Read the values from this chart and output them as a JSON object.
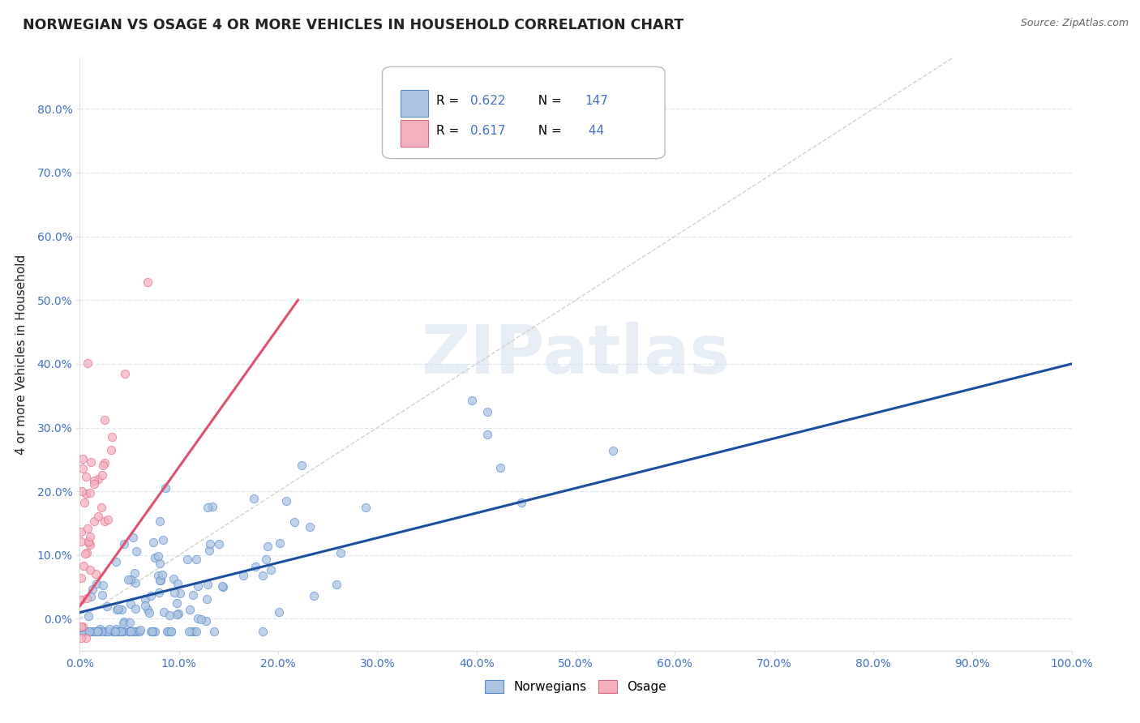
{
  "title": "NORWEGIAN VS OSAGE 4 OR MORE VEHICLES IN HOUSEHOLD CORRELATION CHART",
  "source": "Source: ZipAtlas.com",
  "ylabel": "4 or more Vehicles in Household",
  "xlim": [
    0.0,
    1.0
  ],
  "ylim": [
    -0.05,
    0.88
  ],
  "x_ticks": [
    0.0,
    0.1,
    0.2,
    0.3,
    0.4,
    0.5,
    0.6,
    0.7,
    0.8,
    0.9,
    1.0
  ],
  "y_ticks": [
    0.0,
    0.1,
    0.2,
    0.3,
    0.4,
    0.5,
    0.6,
    0.7,
    0.8
  ],
  "norwegian_R": 0.622,
  "norwegian_N": 147,
  "osage_R": 0.617,
  "osage_N": 44,
  "norwegian_color": "#aac4e2",
  "osage_color": "#f5b0c0",
  "norwegian_edge_color": "#5588cc",
  "osage_edge_color": "#e06880",
  "norwegian_line_color": "#1a4fa0",
  "osage_line_color": "#e05070",
  "ref_line_color": "#cccccc",
  "watermark": "ZIPatlas",
  "background_color": "#ffffff",
  "title_color": "#222222",
  "axis_label_color": "#222222",
  "tick_color": "#4472c4",
  "grid_color": "#dde8f0",
  "legend_color": "#4472c4",
  "norw_line_x0": 0.0,
  "norw_line_y0": 0.01,
  "norw_line_x1": 1.0,
  "norw_line_y1": 0.4,
  "osage_line_x0": 0.0,
  "osage_line_y0": 0.02,
  "osage_line_x1": 0.22,
  "osage_line_y1": 0.5
}
